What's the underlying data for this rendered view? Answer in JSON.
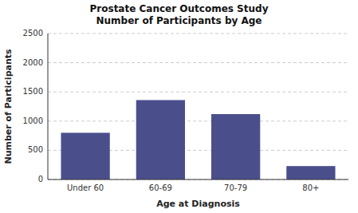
{
  "chart_data": {
    "type": "bar",
    "title": "Prostate Cancer Outcomes Study\nNumber of Participants by Age",
    "categories": [
      "Under 60",
      "60-69",
      "70-79",
      "80+"
    ],
    "values": [
      800,
      1360,
      1120,
      230
    ],
    "color": "#4a4f8c",
    "xlabel": "Age at Diagnosis",
    "ylabel": "Number of Participants",
    "ylim": [
      0,
      2500
    ],
    "yticks": [
      0,
      500,
      1000,
      1500,
      2000,
      2500
    ],
    "grid": true
  }
}
